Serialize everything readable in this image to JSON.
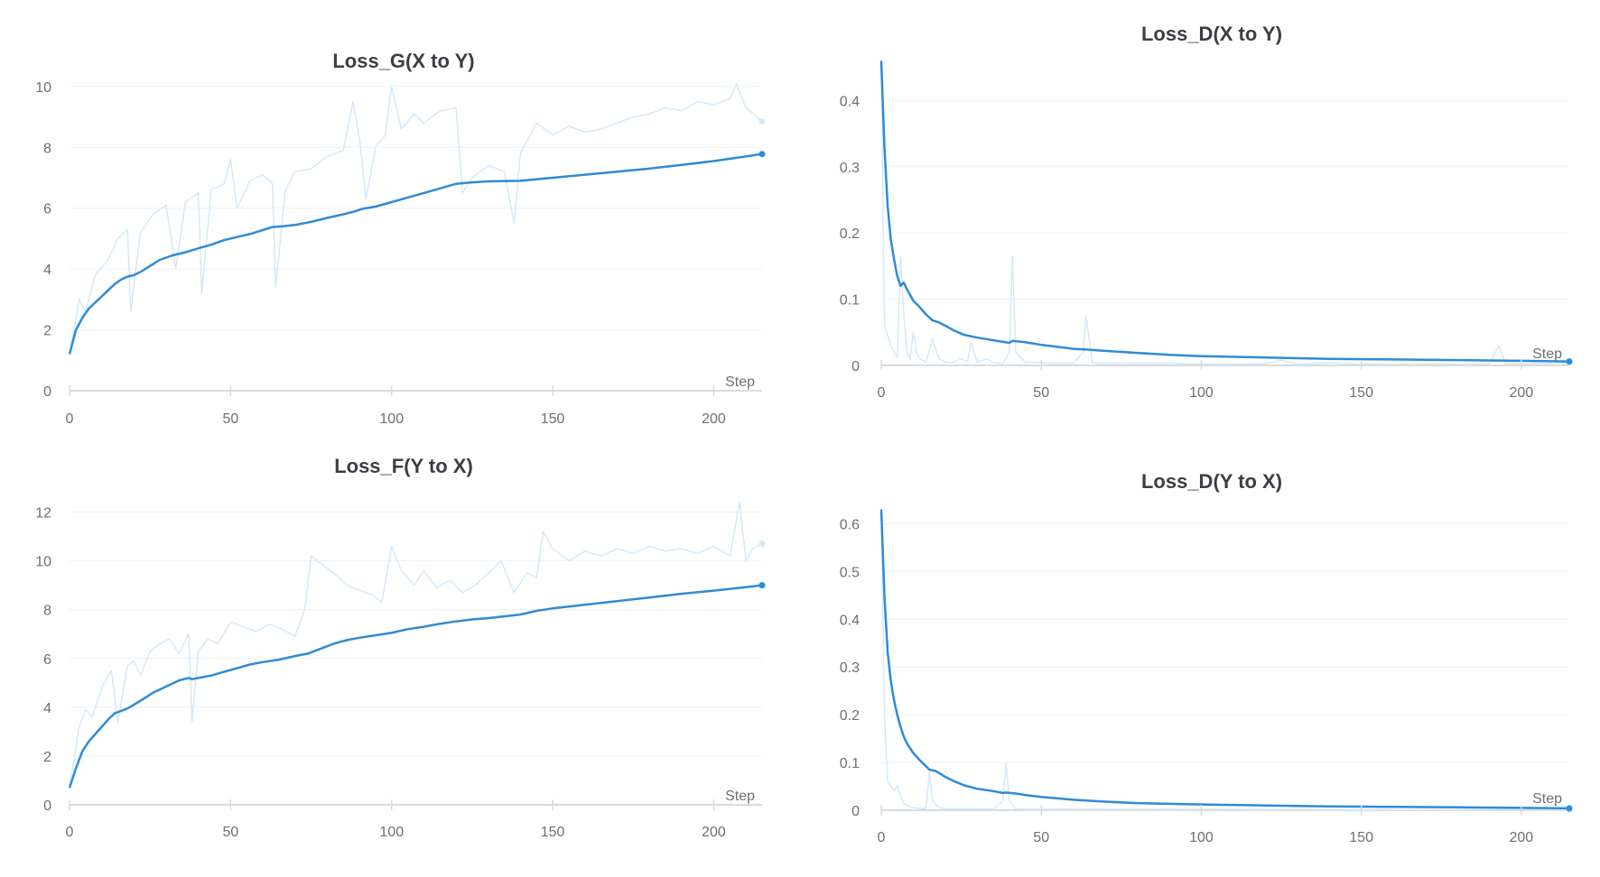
{
  "colors": {
    "smoothed": "#2f8bd6",
    "raw": "#d6e8f7",
    "grid": "#eef0f2",
    "axis": "#d9dcdf",
    "text": "#6b7075",
    "title": "#3a3f44"
  },
  "chart_data": [
    {
      "type": "line",
      "title": "Loss_G(X to Y)",
      "xlabel": "Step",
      "ylabel": "",
      "xlim": [
        0,
        215
      ],
      "ylim": [
        0,
        10.5
      ],
      "xticks": [
        0,
        50,
        100,
        150,
        200
      ],
      "yticks": [
        0,
        2,
        4,
        6,
        8,
        10
      ],
      "ytick_labels": [
        "0",
        "2",
        "4",
        "6",
        "8",
        "10"
      ],
      "grid": true,
      "series": [
        {
          "name": "",
          "style": "raw",
          "x": [
            0,
            3,
            5,
            8,
            12,
            15,
            18,
            19,
            22,
            26,
            30,
            33,
            36,
            40,
            41,
            44,
            48,
            50,
            52,
            56,
            60,
            63,
            64,
            67,
            70,
            75,
            80,
            85,
            88,
            90,
            92,
            95,
            98,
            100,
            103,
            107,
            110,
            115,
            120,
            122,
            125,
            130,
            135,
            138,
            140,
            145,
            150,
            155,
            160,
            165,
            170,
            175,
            180,
            185,
            190,
            195,
            200,
            205,
            207,
            210,
            215
          ],
          "y": [
            1.2,
            3.0,
            2.6,
            3.8,
            4.3,
            5.0,
            5.3,
            2.6,
            5.2,
            5.8,
            6.1,
            4.0,
            6.2,
            6.5,
            3.2,
            6.6,
            6.8,
            7.6,
            6.0,
            6.9,
            7.1,
            6.8,
            3.4,
            6.6,
            7.2,
            7.3,
            7.7,
            7.9,
            9.5,
            8.3,
            6.3,
            8.0,
            8.4,
            10.0,
            8.6,
            9.1,
            8.8,
            9.2,
            9.3,
            6.5,
            7.0,
            7.4,
            7.2,
            5.5,
            7.8,
            8.8,
            8.4,
            8.7,
            8.5,
            8.6,
            8.8,
            9.0,
            9.1,
            9.3,
            9.2,
            9.5,
            9.4,
            9.6,
            10.1,
            9.3,
            8.85
          ]
        },
        {
          "name": "",
          "style": "smoothed",
          "x": [
            0,
            2,
            4,
            6,
            8,
            10,
            12,
            14,
            16,
            18,
            20,
            22,
            25,
            28,
            32,
            36,
            40,
            44,
            48,
            52,
            56,
            60,
            63,
            66,
            70,
            75,
            80,
            85,
            88,
            91,
            95,
            100,
            105,
            110,
            115,
            120,
            125,
            130,
            140,
            150,
            160,
            170,
            180,
            190,
            200,
            210,
            215
          ],
          "y": [
            1.2,
            2.0,
            2.4,
            2.7,
            2.9,
            3.1,
            3.3,
            3.5,
            3.65,
            3.75,
            3.8,
            3.9,
            4.1,
            4.3,
            4.45,
            4.55,
            4.68,
            4.8,
            4.95,
            5.05,
            5.15,
            5.28,
            5.38,
            5.4,
            5.45,
            5.55,
            5.68,
            5.8,
            5.88,
            5.98,
            6.05,
            6.2,
            6.35,
            6.5,
            6.65,
            6.8,
            6.85,
            6.88,
            6.9,
            7.0,
            7.1,
            7.2,
            7.3,
            7.42,
            7.55,
            7.7,
            7.78
          ]
        }
      ]
    },
    {
      "type": "line",
      "title": "Loss_D(X to Y)",
      "xlabel": "Step",
      "ylabel": "",
      "xlim": [
        0,
        215
      ],
      "ylim": [
        0,
        0.47
      ],
      "xticks": [
        0,
        50,
        100,
        150,
        200
      ],
      "yticks": [
        0,
        0.1,
        0.2,
        0.3,
        0.4
      ],
      "ytick_labels": [
        "0",
        "0.1",
        "0.2",
        "0.3",
        "0.4"
      ],
      "grid": true,
      "series": [
        {
          "name": "",
          "style": "raw",
          "x": [
            0,
            1,
            2,
            3,
            4,
            5,
            6,
            7,
            8,
            9,
            10,
            11,
            12,
            14,
            16,
            18,
            20,
            22,
            25,
            27,
            28,
            30,
            33,
            35,
            38,
            40,
            41,
            42,
            45,
            50,
            55,
            60,
            63,
            64,
            66,
            70,
            80,
            90,
            100,
            110,
            120,
            125,
            130,
            140,
            150,
            160,
            180,
            190,
            193,
            195,
            200,
            215
          ],
          "y": [
            0.46,
            0.06,
            0.045,
            0.03,
            0.02,
            0.012,
            0.165,
            0.08,
            0.02,
            0.01,
            0.05,
            0.02,
            0.01,
            0.005,
            0.04,
            0.01,
            0.005,
            0.004,
            0.01,
            0.006,
            0.035,
            0.005,
            0.01,
            0.004,
            0.003,
            0.02,
            0.165,
            0.02,
            0.005,
            0.004,
            0.003,
            0.003,
            0.02,
            0.075,
            0.004,
            0.003,
            0.003,
            0.003,
            0.002,
            0.002,
            0.002,
            0.008,
            0.002,
            0.004,
            0.002,
            0.002,
            0.002,
            0.002,
            0.03,
            0.003,
            0.002,
            0.004
          ]
        },
        {
          "name": "",
          "style": "smoothed",
          "x": [
            0,
            1,
            2,
            3,
            4,
            5,
            6,
            7,
            8,
            10,
            12,
            14,
            16,
            18,
            20,
            23,
            26,
            30,
            35,
            40,
            41,
            45,
            50,
            55,
            60,
            64,
            70,
            80,
            90,
            100,
            120,
            140,
            160,
            180,
            200,
            215
          ],
          "y": [
            0.46,
            0.33,
            0.24,
            0.19,
            0.16,
            0.135,
            0.12,
            0.125,
            0.115,
            0.098,
            0.088,
            0.077,
            0.068,
            0.065,
            0.06,
            0.052,
            0.046,
            0.042,
            0.038,
            0.034,
            0.037,
            0.035,
            0.031,
            0.028,
            0.025,
            0.024,
            0.022,
            0.019,
            0.016,
            0.014,
            0.012,
            0.01,
            0.009,
            0.008,
            0.007,
            0.006
          ]
        }
      ]
    },
    {
      "type": "line",
      "title": "Loss_F(Y to X)",
      "xlabel": "Step",
      "ylabel": "",
      "xlim": [
        0,
        215
      ],
      "ylim": [
        0,
        12.5
      ],
      "xticks": [
        0,
        50,
        100,
        150,
        200
      ],
      "yticks": [
        0,
        2,
        4,
        6,
        8,
        10,
        12
      ],
      "ytick_labels": [
        "0",
        "2",
        "4",
        "6",
        "8",
        "10",
        "12"
      ],
      "grid": true,
      "series": [
        {
          "name": "",
          "style": "raw",
          "x": [
            0,
            3,
            5,
            7,
            10,
            13,
            15,
            18,
            20,
            22,
            25,
            28,
            31,
            34,
            37,
            38,
            40,
            43,
            46,
            50,
            54,
            58,
            62,
            66,
            70,
            73,
            75,
            78,
            82,
            86,
            90,
            94,
            97,
            100,
            103,
            107,
            110,
            114,
            118,
            122,
            126,
            130,
            134,
            138,
            142,
            145,
            147,
            150,
            155,
            160,
            165,
            170,
            175,
            180,
            185,
            190,
            195,
            200,
            205,
            208,
            210,
            212,
            215
          ],
          "y": [
            0.7,
            3.2,
            3.9,
            3.6,
            4.8,
            5.5,
            3.4,
            5.7,
            5.9,
            5.3,
            6.3,
            6.6,
            6.8,
            6.2,
            7.0,
            3.4,
            6.3,
            6.8,
            6.6,
            7.5,
            7.3,
            7.1,
            7.4,
            7.2,
            6.9,
            8.0,
            10.2,
            9.9,
            9.5,
            9.0,
            8.8,
            8.6,
            8.3,
            10.6,
            9.6,
            9.0,
            9.6,
            8.9,
            9.2,
            8.7,
            9.0,
            9.5,
            10.0,
            8.7,
            9.5,
            9.3,
            11.2,
            10.5,
            10.0,
            10.4,
            10.2,
            10.5,
            10.3,
            10.6,
            10.4,
            10.5,
            10.3,
            10.6,
            10.2,
            12.4,
            10.0,
            10.5,
            10.7
          ]
        },
        {
          "name": "",
          "style": "smoothed",
          "x": [
            0,
            2,
            4,
            6,
            8,
            10,
            12,
            14,
            16,
            18,
            20,
            23,
            26,
            30,
            34,
            37,
            38,
            40,
            44,
            48,
            52,
            56,
            60,
            65,
            70,
            74,
            78,
            82,
            86,
            90,
            95,
            100,
            105,
            110,
            115,
            120,
            125,
            130,
            140,
            145,
            150,
            160,
            170,
            180,
            190,
            200,
            210,
            215
          ],
          "y": [
            0.7,
            1.5,
            2.2,
            2.6,
            2.9,
            3.2,
            3.5,
            3.75,
            3.85,
            3.95,
            4.1,
            4.35,
            4.6,
            4.85,
            5.1,
            5.2,
            5.15,
            5.2,
            5.3,
            5.45,
            5.6,
            5.75,
            5.85,
            5.95,
            6.1,
            6.2,
            6.4,
            6.6,
            6.75,
            6.85,
            6.95,
            7.05,
            7.2,
            7.3,
            7.42,
            7.52,
            7.6,
            7.65,
            7.8,
            7.95,
            8.05,
            8.2,
            8.35,
            8.5,
            8.65,
            8.78,
            8.92,
            9.0
          ]
        }
      ]
    },
    {
      "type": "line",
      "title": "Loss_D(Y to X)",
      "xlabel": "Step",
      "ylabel": "",
      "xlim": [
        0,
        215
      ],
      "ylim": [
        0,
        0.65
      ],
      "xticks": [
        0,
        50,
        100,
        150,
        200
      ],
      "yticks": [
        0,
        0.1,
        0.2,
        0.3,
        0.4,
        0.5,
        0.6
      ],
      "ytick_labels": [
        "0",
        "0.1",
        "0.2",
        "0.3",
        "0.4",
        "0.5",
        "0.6"
      ],
      "grid": true,
      "series": [
        {
          "name": "",
          "style": "raw",
          "x": [
            0,
            1,
            2,
            3,
            4,
            5,
            6,
            7,
            8,
            10,
            12,
            14,
            15,
            16,
            18,
            20,
            25,
            30,
            35,
            38,
            39,
            40,
            42,
            45,
            50,
            60,
            80,
            100,
            150,
            200,
            215
          ],
          "y": [
            0.63,
            0.2,
            0.06,
            0.05,
            0.04,
            0.05,
            0.03,
            0.015,
            0.01,
            0.005,
            0.004,
            0.003,
            0.08,
            0.02,
            0.005,
            0.003,
            0.003,
            0.003,
            0.002,
            0.02,
            0.1,
            0.02,
            0.003,
            0.002,
            0.002,
            0.002,
            0.002,
            0.002,
            0.001,
            0.001,
            0.001
          ]
        },
        {
          "name": "",
          "style": "smoothed",
          "x": [
            0,
            1,
            2,
            3,
            4,
            5,
            6,
            7,
            8,
            10,
            12,
            14,
            15,
            17,
            20,
            23,
            26,
            30,
            35,
            38,
            39,
            42,
            46,
            50,
            60,
            70,
            80,
            100,
            120,
            140,
            160,
            180,
            200,
            215
          ],
          "y": [
            0.63,
            0.45,
            0.33,
            0.27,
            0.23,
            0.2,
            0.175,
            0.155,
            0.14,
            0.12,
            0.105,
            0.092,
            0.085,
            0.082,
            0.07,
            0.06,
            0.052,
            0.045,
            0.04,
            0.036,
            0.037,
            0.035,
            0.031,
            0.028,
            0.022,
            0.018,
            0.015,
            0.012,
            0.01,
            0.008,
            0.007,
            0.006,
            0.005,
            0.004
          ]
        }
      ]
    }
  ]
}
